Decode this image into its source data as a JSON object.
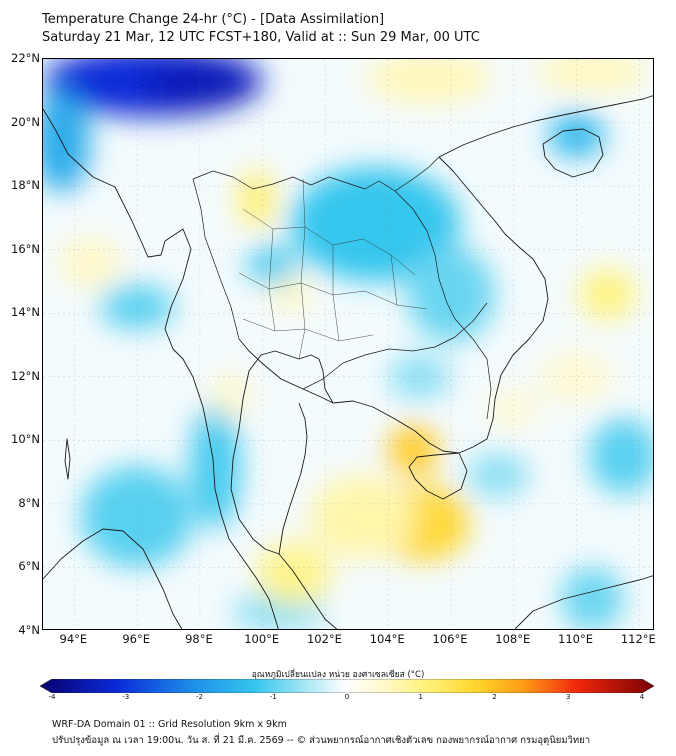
{
  "header": {
    "title_line1": "Temperature Change 24-hr (°C) - [Data Assimilation]",
    "title_line2": "Saturday 21 Mar, 12 UTC FCST+180, Valid at :: Sun 29 Mar, 00 UTC"
  },
  "map": {
    "extent": {
      "lon_min": 93,
      "lon_max": 112.5,
      "lat_min": 4,
      "lat_max": 22
    },
    "lat_labels": [
      {
        "lat": 22,
        "label": "22°N"
      },
      {
        "lat": 20,
        "label": "20°N"
      },
      {
        "lat": 18,
        "label": "18°N"
      },
      {
        "lat": 16,
        "label": "16°N"
      },
      {
        "lat": 14,
        "label": "14°N"
      },
      {
        "lat": 12,
        "label": "12°N"
      },
      {
        "lat": 10,
        "label": "10°N"
      },
      {
        "lat": 8,
        "label": "8°N"
      },
      {
        "lat": 6,
        "label": "6°N"
      },
      {
        "lat": 4,
        "label": "4°N"
      }
    ],
    "lon_labels": [
      {
        "lon": 94,
        "label": "94°E"
      },
      {
        "lon": 96,
        "label": "96°E"
      },
      {
        "lon": 98,
        "label": "98°E"
      },
      {
        "lon": 100,
        "label": "100°E"
      },
      {
        "lon": 102,
        "label": "102°E"
      },
      {
        "lon": 104,
        "label": "104°E"
      },
      {
        "lon": 106,
        "label": "106°E"
      },
      {
        "lon": 108,
        "label": "108°E"
      },
      {
        "lon": 110,
        "label": "110°E"
      },
      {
        "lon": 112,
        "label": "112°E"
      }
    ],
    "anomaly_blobs": [
      {
        "lon": 96.5,
        "lat": 21.3,
        "rlon": 3.5,
        "rlat": 1.1,
        "value": -3.0
      },
      {
        "lon": 98.0,
        "lat": 21.2,
        "rlon": 1.8,
        "rlat": 0.8,
        "value": -3.3
      },
      {
        "lon": 93.6,
        "lat": 19.4,
        "rlon": 0.9,
        "rlat": 1.6,
        "value": -1.6
      },
      {
        "lon": 103.6,
        "lat": 16.8,
        "rlon": 2.7,
        "rlat": 1.8,
        "value": -1.2
      },
      {
        "lon": 106.0,
        "lat": 14.6,
        "rlon": 1.4,
        "rlat": 1.5,
        "value": -0.9
      },
      {
        "lon": 110.0,
        "lat": 19.6,
        "rlon": 0.9,
        "rlat": 0.7,
        "value": -1.4
      },
      {
        "lon": 100.3,
        "lat": 15.5,
        "rlon": 0.8,
        "rlat": 0.6,
        "value": -1.1
      },
      {
        "lon": 96.0,
        "lat": 14.2,
        "rlon": 1.2,
        "rlat": 0.7,
        "value": -1.0
      },
      {
        "lon": 96.0,
        "lat": 7.6,
        "rlon": 1.8,
        "rlat": 1.6,
        "value": -1.0
      },
      {
        "lon": 98.5,
        "lat": 9.2,
        "rlon": 0.8,
        "rlat": 2.0,
        "value": -1.1
      },
      {
        "lon": 111.5,
        "lat": 9.5,
        "rlon": 1.1,
        "rlat": 1.2,
        "value": -1.0
      },
      {
        "lon": 107.5,
        "lat": 8.9,
        "rlon": 1.0,
        "rlat": 0.7,
        "value": -0.7
      },
      {
        "lon": 105.0,
        "lat": 12.0,
        "rlon": 1.0,
        "rlat": 0.7,
        "value": -0.7
      },
      {
        "lon": 110.5,
        "lat": 5.0,
        "rlon": 1.0,
        "rlat": 1.0,
        "value": -0.9
      },
      {
        "lon": 100.5,
        "lat": 4.6,
        "rlon": 1.5,
        "rlat": 0.6,
        "value": -0.7
      },
      {
        "lon": 105.1,
        "lat": 7.4,
        "rlon": 1.5,
        "rlat": 1.2,
        "value": 1.6
      },
      {
        "lon": 104.8,
        "lat": 9.7,
        "rlon": 0.8,
        "rlat": 0.8,
        "value": 1.8
      },
      {
        "lon": 103.2,
        "lat": 7.6,
        "rlon": 1.7,
        "rlat": 1.3,
        "value": 0.7
      },
      {
        "lon": 101.0,
        "lat": 5.8,
        "rlon": 1.2,
        "rlat": 1.0,
        "value": 0.9
      },
      {
        "lon": 99.8,
        "lat": 17.6,
        "rlon": 0.6,
        "rlat": 0.9,
        "value": 1.1
      },
      {
        "lon": 100.9,
        "lat": 14.6,
        "rlon": 0.6,
        "rlat": 0.5,
        "value": 0.6
      },
      {
        "lon": 105.3,
        "lat": 21.4,
        "rlon": 2.0,
        "rlat": 0.8,
        "value": 0.6
      },
      {
        "lon": 110.5,
        "lat": 21.6,
        "rlon": 1.8,
        "rlat": 0.6,
        "value": 0.6
      },
      {
        "lon": 111.0,
        "lat": 14.6,
        "rlon": 0.9,
        "rlat": 0.8,
        "value": 1.0
      },
      {
        "lon": 94.5,
        "lat": 15.6,
        "rlon": 1.0,
        "rlat": 0.8,
        "value": 0.5
      },
      {
        "lon": 99.0,
        "lat": 11.4,
        "rlon": 0.6,
        "rlat": 0.7,
        "value": 0.5
      },
      {
        "lon": 110.0,
        "lat": 12.0,
        "rlon": 1.2,
        "rlat": 0.8,
        "value": 0.4
      },
      {
        "lon": 108.0,
        "lat": 11.0,
        "rlon": 0.8,
        "rlat": 0.6,
        "value": 0.4
      }
    ]
  },
  "colorbar": {
    "title": "อุณหภูมิเปลี่ยนแปลง หน่วย องศาเซลเซียส (°C)",
    "min": -4,
    "max": 4,
    "ticks": [
      {
        "value": -4,
        "label": "-4"
      },
      {
        "value": -3,
        "label": "-3"
      },
      {
        "value": -2,
        "label": "-2"
      },
      {
        "value": -1,
        "label": "-1"
      },
      {
        "value": 0,
        "label": "0"
      },
      {
        "value": 1,
        "label": "1"
      },
      {
        "value": 2,
        "label": "2"
      },
      {
        "value": 3,
        "label": "3"
      },
      {
        "value": 4,
        "label": "4"
      }
    ],
    "stops": [
      {
        "value": -4,
        "color": "#08006e"
      },
      {
        "value": -3,
        "color": "#0a2ad8"
      },
      {
        "value": -2,
        "color": "#1e8fe8"
      },
      {
        "value": -1.2,
        "color": "#35c6ee"
      },
      {
        "value": -0.5,
        "color": "#aee9f6"
      },
      {
        "value": 0,
        "color": "#ffffff"
      },
      {
        "value": 0.5,
        "color": "#fff8c8"
      },
      {
        "value": 1,
        "color": "#fff37e"
      },
      {
        "value": 1.7,
        "color": "#ffd42a"
      },
      {
        "value": 2.3,
        "color": "#ff9b17"
      },
      {
        "value": 3,
        "color": "#f0280a"
      },
      {
        "value": 4,
        "color": "#7a0005"
      }
    ]
  },
  "footer": {
    "line1": "WRF-DA Domain 01 :: Grid Resolution 9km x 9km",
    "line2": "ปรับปรุงข้อมูล ณ เวลา 19:00น. วัน ส. ที่ 21 มี.ค. 2569 -- © ส่วนพยากรณ์อากาศเชิงตัวเลข กองพยากรณ์อากาศ กรมอุตุนิยมวิทยา"
  }
}
